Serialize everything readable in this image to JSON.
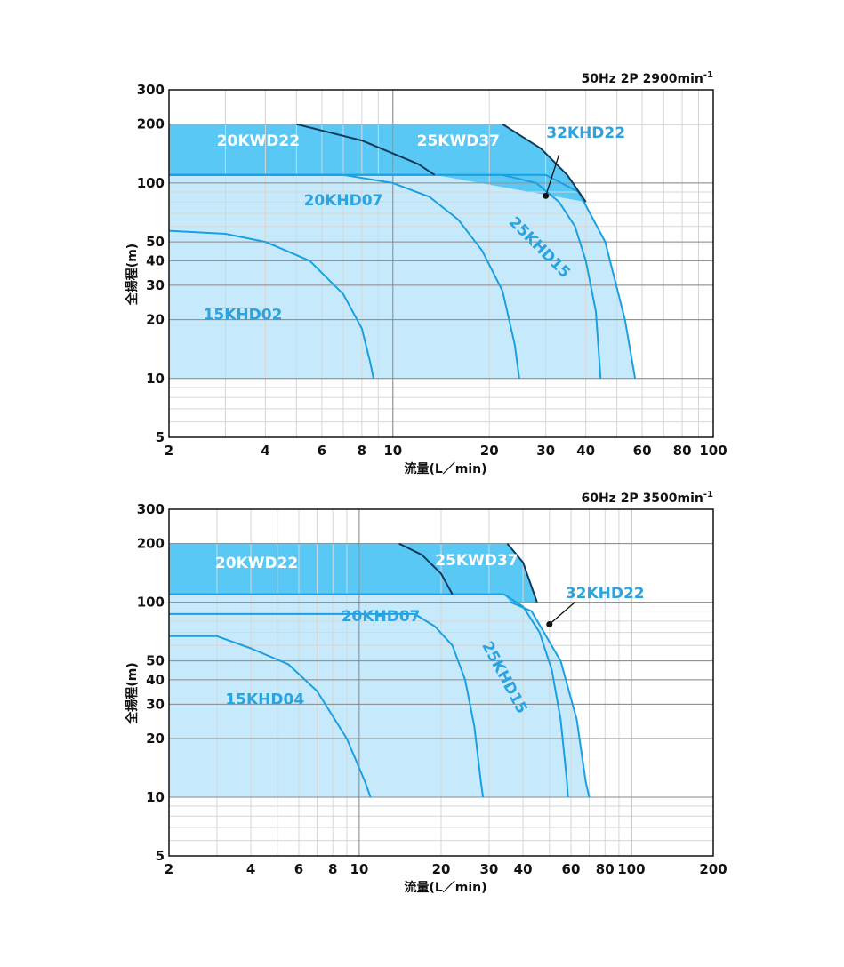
{
  "chart_data": [
    {
      "type": "area",
      "header": "50Hz 2P 2900min",
      "header_sup": "-1",
      "xlabel": "流量(L／min)",
      "ylabel": "全揚程(m)",
      "xscale": "log",
      "yscale": "log",
      "xlim": [
        2,
        100
      ],
      "ylim": [
        5,
        300
      ],
      "x_ticks": [
        2,
        4,
        6,
        8,
        10,
        20,
        30,
        40,
        60,
        80,
        100
      ],
      "x_tick_labels": [
        "2",
        "4",
        "6",
        "8",
        "10",
        "20",
        "30",
        "40",
        "60",
        "80",
        "100"
      ],
      "y_ticks": [
        5,
        10,
        20,
        30,
        40,
        50,
        100,
        200,
        300
      ],
      "y_tick_labels": [
        "5",
        "10",
        "20",
        "30",
        "40",
        "50",
        "100",
        "200",
        "300"
      ],
      "grid": true,
      "dark_regions": [
        {
          "name": "20KWD22",
          "points": [
            [
              2,
              200
            ],
            [
              5,
              200
            ],
            [
              8,
              165
            ],
            [
              12,
              125
            ],
            [
              13.5,
              110
            ],
            [
              2,
              110
            ]
          ]
        },
        {
          "name": "25KWD37",
          "points": [
            [
              5,
              200
            ],
            [
              22,
              200
            ],
            [
              29,
              150
            ],
            [
              35,
              110
            ],
            [
              40,
              80
            ],
            [
              13.5,
              110
            ],
            [
              12,
              125
            ],
            [
              8,
              165
            ]
          ]
        }
      ],
      "light_regions": [
        {
          "name": "32KHD22",
          "points": [
            [
              2,
              110
            ],
            [
              30,
              110
            ],
            [
              38,
              90
            ],
            [
              46,
              50
            ],
            [
              53,
              20
            ],
            [
              57,
              10
            ],
            [
              2,
              10
            ]
          ]
        }
      ],
      "curves": [
        {
          "name": "15KHD02",
          "points": [
            [
              2,
              57
            ],
            [
              3,
              55
            ],
            [
              4,
              50
            ],
            [
              5.5,
              40
            ],
            [
              7,
              27
            ],
            [
              8,
              18
            ],
            [
              8.5,
              12
            ],
            [
              8.7,
              10
            ]
          ]
        },
        {
          "name": "20KHD07",
          "points": [
            [
              2,
              110
            ],
            [
              7,
              110
            ],
            [
              10,
              100
            ],
            [
              13,
              85
            ],
            [
              16,
              65
            ],
            [
              19,
              45
            ],
            [
              22,
              28
            ],
            [
              24,
              15
            ],
            [
              24.8,
              10
            ]
          ]
        },
        {
          "name": "25KHD15",
          "points": [
            [
              2,
              110
            ],
            [
              22,
              110
            ],
            [
              28,
              100
            ],
            [
              33,
              80
            ],
            [
              37,
              60
            ],
            [
              40,
              40
            ],
            [
              43,
              22
            ],
            [
              44.5,
              10
            ]
          ]
        },
        {
          "name": "32KHD22",
          "points": [
            [
              2,
              110
            ],
            [
              30,
              110
            ],
            [
              38,
              90
            ],
            [
              46,
              50
            ],
            [
              53,
              20
            ],
            [
              57,
              10
            ]
          ]
        },
        {
          "name": "20KWD22",
          "points": [
            [
              5,
              200
            ],
            [
              8,
              165
            ],
            [
              12,
              125
            ],
            [
              13.5,
              110
            ]
          ],
          "dark": true
        },
        {
          "name": "25KWD37",
          "points": [
            [
              22,
              200
            ],
            [
              29,
              150
            ],
            [
              35,
              110
            ],
            [
              40,
              80
            ]
          ],
          "dark": true
        }
      ],
      "labels": [
        {
          "text": "20KWD22",
          "x": 3.8,
          "y": 155,
          "color": "white"
        },
        {
          "text": "25KWD37",
          "x": 16,
          "y": 155,
          "color": "white"
        },
        {
          "text": "32KHD22",
          "x": 40,
          "y": 170,
          "color": "blue"
        },
        {
          "text": "20KHD07",
          "x": 7,
          "y": 77,
          "color": "blue"
        },
        {
          "text": "25KHD15",
          "x": 28,
          "y": 45,
          "color": "blue",
          "rotate": 45
        },
        {
          "text": "15KHD02",
          "x": 3.4,
          "y": 20,
          "color": "blue"
        }
      ],
      "pointer": {
        "from": [
          33,
          140
        ],
        "to": [
          30,
          86
        ]
      }
    },
    {
      "type": "area",
      "header": "60Hz 2P 3500min",
      "header_sup": "-1",
      "xlabel": "流量(L／min)",
      "ylabel": "全揚程(m)",
      "xscale": "log",
      "yscale": "log",
      "xlim": [
        2,
        200
      ],
      "ylim": [
        5,
        300
      ],
      "x_ticks": [
        2,
        4,
        6,
        8,
        10,
        20,
        30,
        40,
        60,
        80,
        100,
        200
      ],
      "x_tick_labels": [
        "2",
        "4",
        "6",
        "8",
        "10",
        "20",
        "30",
        "40",
        "60",
        "80",
        "100",
        "200"
      ],
      "y_ticks": [
        5,
        10,
        20,
        30,
        40,
        50,
        100,
        200,
        300
      ],
      "y_tick_labels": [
        "5",
        "10",
        "20",
        "30",
        "40",
        "50",
        "100",
        "200",
        "300"
      ],
      "grid": true,
      "dark_regions": [
        {
          "name": "20KWD22",
          "points": [
            [
              2,
              200
            ],
            [
              14,
              200
            ],
            [
              17,
              175
            ],
            [
              20,
              140
            ],
            [
              22,
              110
            ],
            [
              2,
              110
            ]
          ]
        },
        {
          "name": "25KWD37",
          "points": [
            [
              14,
              200
            ],
            [
              35,
              200
            ],
            [
              40,
              160
            ],
            [
              45,
              100
            ],
            [
              36,
              100
            ],
            [
              34,
              110
            ],
            [
              22,
              110
            ],
            [
              20,
              140
            ],
            [
              17,
              175
            ]
          ]
        }
      ],
      "light_regions": [
        {
          "name": "32KHD22",
          "points": [
            [
              2,
              110
            ],
            [
              34,
              110
            ],
            [
              36,
              100
            ],
            [
              43,
              90
            ],
            [
              55,
              50
            ],
            [
              63,
              25
            ],
            [
              70,
              10
            ],
            [
              2,
              10
            ]
          ]
        }
      ],
      "curves": [
        {
          "name": "15KHD04",
          "points": [
            [
              2,
              67
            ],
            [
              3,
              67
            ],
            [
              4,
              58
            ],
            [
              5.5,
              48
            ],
            [
              7,
              35
            ],
            [
              9,
              20
            ],
            [
              10.5,
              12
            ],
            [
              11,
              10
            ]
          ]
        },
        {
          "name": "20KHD07",
          "points": [
            [
              2,
              87
            ],
            [
              16,
              87
            ],
            [
              19,
              75
            ],
            [
              22,
              60
            ],
            [
              24.5,
              40
            ],
            [
              26.5,
              23
            ],
            [
              28,
              12
            ],
            [
              28.5,
              10
            ]
          ]
        },
        {
          "name": "25KHD15",
          "points": [
            [
              2,
              110
            ],
            [
              34,
              110
            ],
            [
              40,
              95
            ],
            [
              46,
              70
            ],
            [
              51,
              45
            ],
            [
              55,
              25
            ],
            [
              58,
              12
            ],
            [
              58.5,
              10
            ]
          ]
        },
        {
          "name": "32KHD22",
          "points": [
            [
              36,
              100
            ],
            [
              43,
              90
            ],
            [
              55,
              50
            ],
            [
              63,
              25
            ],
            [
              68,
              12
            ],
            [
              70,
              10
            ]
          ]
        },
        {
          "name": "20KWD22",
          "points": [
            [
              14,
              200
            ],
            [
              17,
              175
            ],
            [
              20,
              140
            ],
            [
              22,
              110
            ]
          ],
          "dark": true
        },
        {
          "name": "25KWD37",
          "points": [
            [
              35,
              200
            ],
            [
              40,
              160
            ],
            [
              45,
              100
            ]
          ],
          "dark": true
        }
      ],
      "labels": [
        {
          "text": "20KWD22",
          "x": 4.2,
          "y": 150,
          "color": "white"
        },
        {
          "text": "25KWD37",
          "x": 27,
          "y": 155,
          "color": "white"
        },
        {
          "text": "32KHD22",
          "x": 80,
          "y": 105,
          "color": "blue"
        },
        {
          "text": "20KHD07",
          "x": 12,
          "y": 80,
          "color": "blue"
        },
        {
          "text": "25KHD15",
          "x": 33,
          "y": 40,
          "color": "blue",
          "rotate": 62
        },
        {
          "text": "15KHD04",
          "x": 4.5,
          "y": 30,
          "color": "blue"
        }
      ],
      "pointer": {
        "from": [
          62,
          100
        ],
        "to": [
          50,
          77
        ]
      }
    }
  ]
}
